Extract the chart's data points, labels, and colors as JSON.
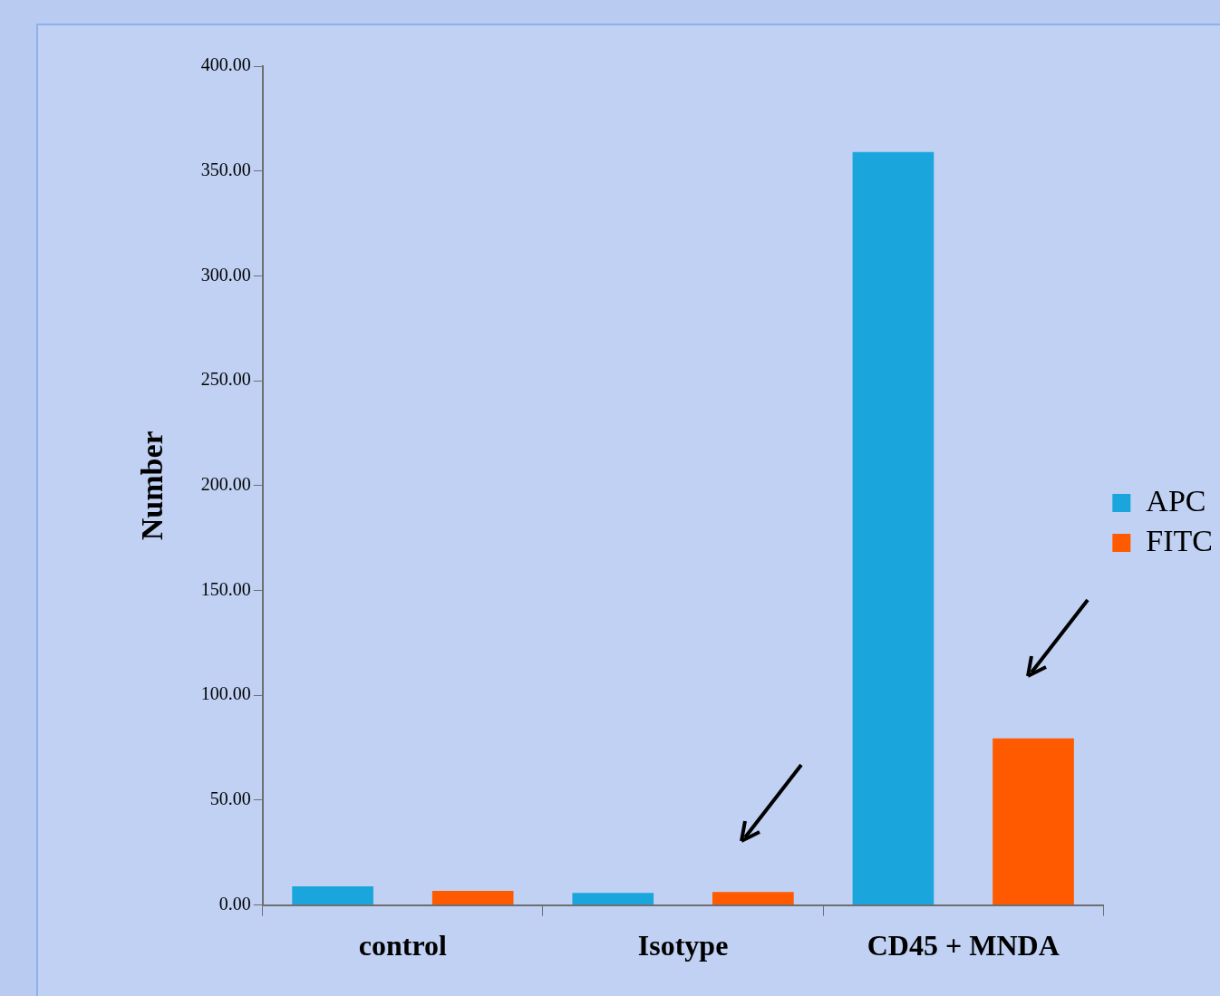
{
  "chart_data": {
    "type": "bar",
    "ylabel": "Number",
    "categories": [
      "control",
      "Isotype",
      "CD45 + MNDA"
    ],
    "series": [
      {
        "name": "APC",
        "color": "#1aa6dc",
        "values": [
          8.9,
          5.8,
          359
        ]
      },
      {
        "name": "FITC",
        "color": "#ff5a00",
        "values": [
          6.7,
          6.2,
          79.5
        ]
      }
    ],
    "ylim": [
      0,
      400
    ],
    "yticks": [
      {
        "value": 0,
        "label": "0.00"
      },
      {
        "value": 50,
        "label": "50.00"
      },
      {
        "value": 100,
        "label": "100.00"
      },
      {
        "value": 150,
        "label": "150.00"
      },
      {
        "value": 200,
        "label": "200.00"
      },
      {
        "value": 250,
        "label": "250.00"
      },
      {
        "value": 300,
        "label": "300.00"
      },
      {
        "value": 350,
        "label": "350.00"
      },
      {
        "value": 400,
        "label": "400.00"
      }
    ],
    "grid": false,
    "legend": "right"
  }
}
